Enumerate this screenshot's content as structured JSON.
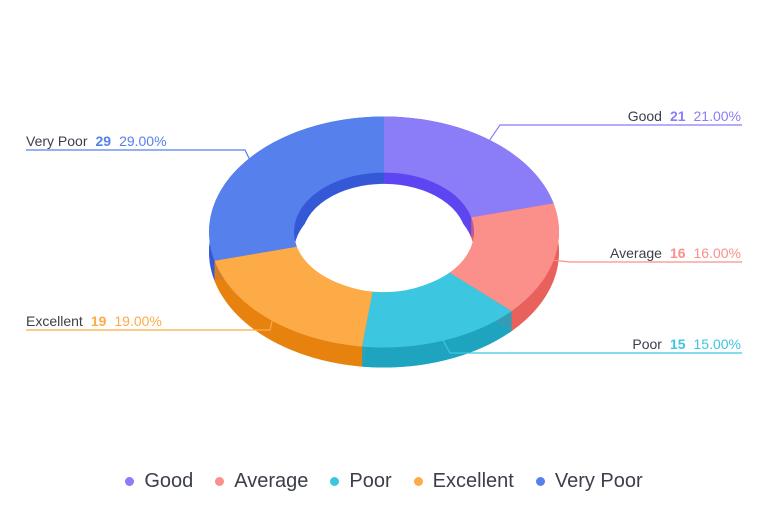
{
  "chart_data": {
    "type": "pie",
    "variant": "3d-donut",
    "categories": [
      "Good",
      "Average",
      "Poor",
      "Excellent",
      "Very Poor"
    ],
    "values": [
      21,
      16,
      15,
      19,
      29
    ],
    "percentages": [
      "21.00%",
      "16.00%",
      "15.00%",
      "19.00%",
      "29.00%"
    ],
    "colors": [
      "#8b7cf8",
      "#fb8f8a",
      "#3cc6e0",
      "#fdab47",
      "#5680ec"
    ],
    "side_colors": [
      "#5d45f2",
      "#e8625c",
      "#1fa4bf",
      "#e8820f",
      "#3559d6"
    ],
    "legend_position": "bottom"
  }
}
